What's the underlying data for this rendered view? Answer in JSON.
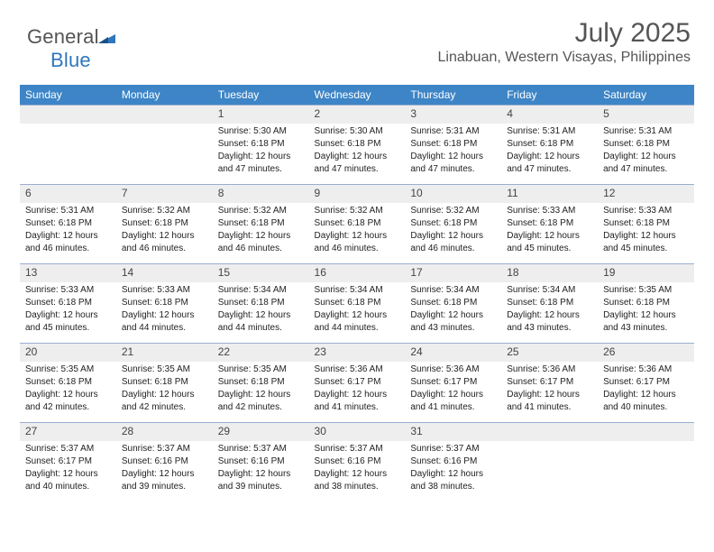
{
  "brand": {
    "name_a": "General",
    "name_b": "Blue"
  },
  "header": {
    "month_title": "July 2025",
    "location": "Linabuan, Western Visayas, Philippines"
  },
  "calendar": {
    "type": "table",
    "header_bg": "#3d85c6",
    "header_fg": "#ffffff",
    "grid_line_color": "#9aaed0",
    "daynum_bg": "#eeeeee",
    "body_font_size_pt": 8,
    "header_font_size_pt": 9,
    "columns": [
      "Sunday",
      "Monday",
      "Tuesday",
      "Wednesday",
      "Thursday",
      "Friday",
      "Saturday"
    ],
    "rows": [
      [
        null,
        null,
        {
          "n": "1",
          "sr": "5:30 AM",
          "ss": "6:18 PM",
          "dl": "12 hours and 47 minutes."
        },
        {
          "n": "2",
          "sr": "5:30 AM",
          "ss": "6:18 PM",
          "dl": "12 hours and 47 minutes."
        },
        {
          "n": "3",
          "sr": "5:31 AM",
          "ss": "6:18 PM",
          "dl": "12 hours and 47 minutes."
        },
        {
          "n": "4",
          "sr": "5:31 AM",
          "ss": "6:18 PM",
          "dl": "12 hours and 47 minutes."
        },
        {
          "n": "5",
          "sr": "5:31 AM",
          "ss": "6:18 PM",
          "dl": "12 hours and 47 minutes."
        }
      ],
      [
        {
          "n": "6",
          "sr": "5:31 AM",
          "ss": "6:18 PM",
          "dl": "12 hours and 46 minutes."
        },
        {
          "n": "7",
          "sr": "5:32 AM",
          "ss": "6:18 PM",
          "dl": "12 hours and 46 minutes."
        },
        {
          "n": "8",
          "sr": "5:32 AM",
          "ss": "6:18 PM",
          "dl": "12 hours and 46 minutes."
        },
        {
          "n": "9",
          "sr": "5:32 AM",
          "ss": "6:18 PM",
          "dl": "12 hours and 46 minutes."
        },
        {
          "n": "10",
          "sr": "5:32 AM",
          "ss": "6:18 PM",
          "dl": "12 hours and 46 minutes."
        },
        {
          "n": "11",
          "sr": "5:33 AM",
          "ss": "6:18 PM",
          "dl": "12 hours and 45 minutes."
        },
        {
          "n": "12",
          "sr": "5:33 AM",
          "ss": "6:18 PM",
          "dl": "12 hours and 45 minutes."
        }
      ],
      [
        {
          "n": "13",
          "sr": "5:33 AM",
          "ss": "6:18 PM",
          "dl": "12 hours and 45 minutes."
        },
        {
          "n": "14",
          "sr": "5:33 AM",
          "ss": "6:18 PM",
          "dl": "12 hours and 44 minutes."
        },
        {
          "n": "15",
          "sr": "5:34 AM",
          "ss": "6:18 PM",
          "dl": "12 hours and 44 minutes."
        },
        {
          "n": "16",
          "sr": "5:34 AM",
          "ss": "6:18 PM",
          "dl": "12 hours and 44 minutes."
        },
        {
          "n": "17",
          "sr": "5:34 AM",
          "ss": "6:18 PM",
          "dl": "12 hours and 43 minutes."
        },
        {
          "n": "18",
          "sr": "5:34 AM",
          "ss": "6:18 PM",
          "dl": "12 hours and 43 minutes."
        },
        {
          "n": "19",
          "sr": "5:35 AM",
          "ss": "6:18 PM",
          "dl": "12 hours and 43 minutes."
        }
      ],
      [
        {
          "n": "20",
          "sr": "5:35 AM",
          "ss": "6:18 PM",
          "dl": "12 hours and 42 minutes."
        },
        {
          "n": "21",
          "sr": "5:35 AM",
          "ss": "6:18 PM",
          "dl": "12 hours and 42 minutes."
        },
        {
          "n": "22",
          "sr": "5:35 AM",
          "ss": "6:18 PM",
          "dl": "12 hours and 42 minutes."
        },
        {
          "n": "23",
          "sr": "5:36 AM",
          "ss": "6:17 PM",
          "dl": "12 hours and 41 minutes."
        },
        {
          "n": "24",
          "sr": "5:36 AM",
          "ss": "6:17 PM",
          "dl": "12 hours and 41 minutes."
        },
        {
          "n": "25",
          "sr": "5:36 AM",
          "ss": "6:17 PM",
          "dl": "12 hours and 41 minutes."
        },
        {
          "n": "26",
          "sr": "5:36 AM",
          "ss": "6:17 PM",
          "dl": "12 hours and 40 minutes."
        }
      ],
      [
        {
          "n": "27",
          "sr": "5:37 AM",
          "ss": "6:17 PM",
          "dl": "12 hours and 40 minutes."
        },
        {
          "n": "28",
          "sr": "5:37 AM",
          "ss": "6:16 PM",
          "dl": "12 hours and 39 minutes."
        },
        {
          "n": "29",
          "sr": "5:37 AM",
          "ss": "6:16 PM",
          "dl": "12 hours and 39 minutes."
        },
        {
          "n": "30",
          "sr": "5:37 AM",
          "ss": "6:16 PM",
          "dl": "12 hours and 38 minutes."
        },
        {
          "n": "31",
          "sr": "5:37 AM",
          "ss": "6:16 PM",
          "dl": "12 hours and 38 minutes."
        },
        null,
        null
      ]
    ],
    "labels": {
      "sunrise": "Sunrise:",
      "sunset": "Sunset:",
      "daylight": "Daylight:"
    }
  }
}
